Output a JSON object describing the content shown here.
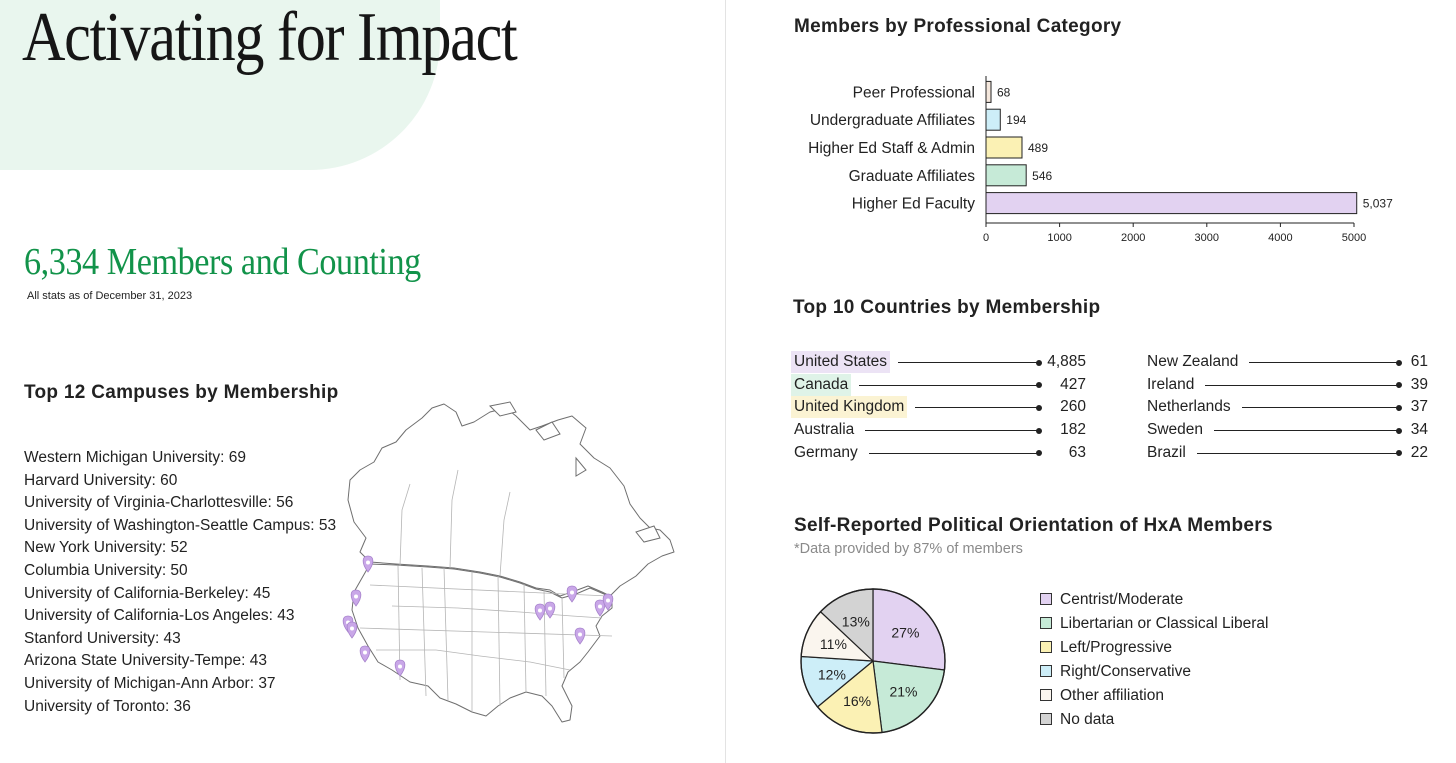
{
  "header": {
    "title": "Activating for Impact"
  },
  "members": {
    "headline": "6,334 Members and Counting",
    "note": "All stats as of December 31, 2023"
  },
  "campuses": {
    "title": "Top 12 Campuses by Membership",
    "items": [
      "Western Michigan University: 69",
      "Harvard University: 60",
      "University of Virginia-Charlottesville: 56",
      "University of Washington-Seattle Campus: 53",
      "New York University: 52",
      "Columbia University: 50",
      "University of California-Berkeley: 45",
      "University of California-Los Angeles: 43",
      "Stanford University: 43",
      "Arizona State University-Tempe: 43",
      "University of Michigan-Ann Arbor: 37",
      "University of Toronto: 36"
    ],
    "map_marker_color": "#c9a7e8"
  },
  "professional": {
    "title": "Members by Professional Category"
  },
  "countries": {
    "title": "Top 10 Countries by Membership",
    "left": [
      {
        "name": "United States",
        "value": "4,885",
        "highlight": "#ece3f5"
      },
      {
        "name": "Canada",
        "value": "427",
        "highlight": "#dff3e8"
      },
      {
        "name": "United Kingdom",
        "value": "260",
        "highlight": "#fbf3d3"
      },
      {
        "name": "Australia",
        "value": "182",
        "highlight": ""
      },
      {
        "name": "Germany",
        "value": "63",
        "highlight": ""
      }
    ],
    "right": [
      {
        "name": "New Zealand",
        "value": "61"
      },
      {
        "name": "Ireland",
        "value": "39"
      },
      {
        "name": "Netherlands",
        "value": "37"
      },
      {
        "name": "Sweden",
        "value": "34"
      },
      {
        "name": "Brazil",
        "value": "22"
      }
    ]
  },
  "political": {
    "title": "Self-Reported Political Orientation of HxA Members",
    "subtitle": "*Data provided by 87% of members"
  },
  "chart_data": [
    {
      "type": "bar",
      "orientation": "horizontal",
      "title": "Members by Professional Category",
      "categories": [
        "Peer Professional",
        "Undergraduate Affiliates",
        "Higher Ed Staff & Admin",
        "Graduate Affiliates",
        "Higher Ed Faculty"
      ],
      "values": [
        68,
        194,
        489,
        546,
        5037
      ],
      "value_labels": [
        "68",
        "194",
        "489",
        "546",
        "5,037"
      ],
      "colors": [
        "#f4e7dc",
        "#cdeef8",
        "#fbf1b4",
        "#c6ead7",
        "#e2d2f1"
      ],
      "xlim": [
        0,
        5000
      ],
      "xticks": [
        "0",
        "1000",
        "2000",
        "3000",
        "4000",
        "5000"
      ],
      "grid": false
    },
    {
      "type": "table",
      "title": "Top 10 Countries by Membership",
      "categories": [
        "United States",
        "Canada",
        "United Kingdom",
        "Australia",
        "Germany",
        "New Zealand",
        "Ireland",
        "Netherlands",
        "Sweden",
        "Brazil"
      ],
      "values": [
        4885,
        427,
        260,
        182,
        63,
        61,
        39,
        37,
        34,
        22
      ]
    },
    {
      "type": "pie",
      "title": "Self-Reported Political Orientation of HxA Members",
      "subtitle": "*Data provided by 87% of members",
      "categories": [
        "Centrist/Moderate",
        "Libertarian or Classical Liberal",
        "Left/Progressive",
        "Right/Conservative",
        "Other affiliation",
        "No data"
      ],
      "values": [
        27,
        21,
        16,
        12,
        11,
        13
      ],
      "labels": [
        "27%",
        "21%",
        "16%",
        "12%",
        "11%",
        "13%"
      ],
      "colors": [
        "#e2d2f1",
        "#c6ead7",
        "#fbf1b4",
        "#cdeef8",
        "#faf5ee",
        "#d3d3d3"
      ],
      "legend": "right"
    }
  ]
}
